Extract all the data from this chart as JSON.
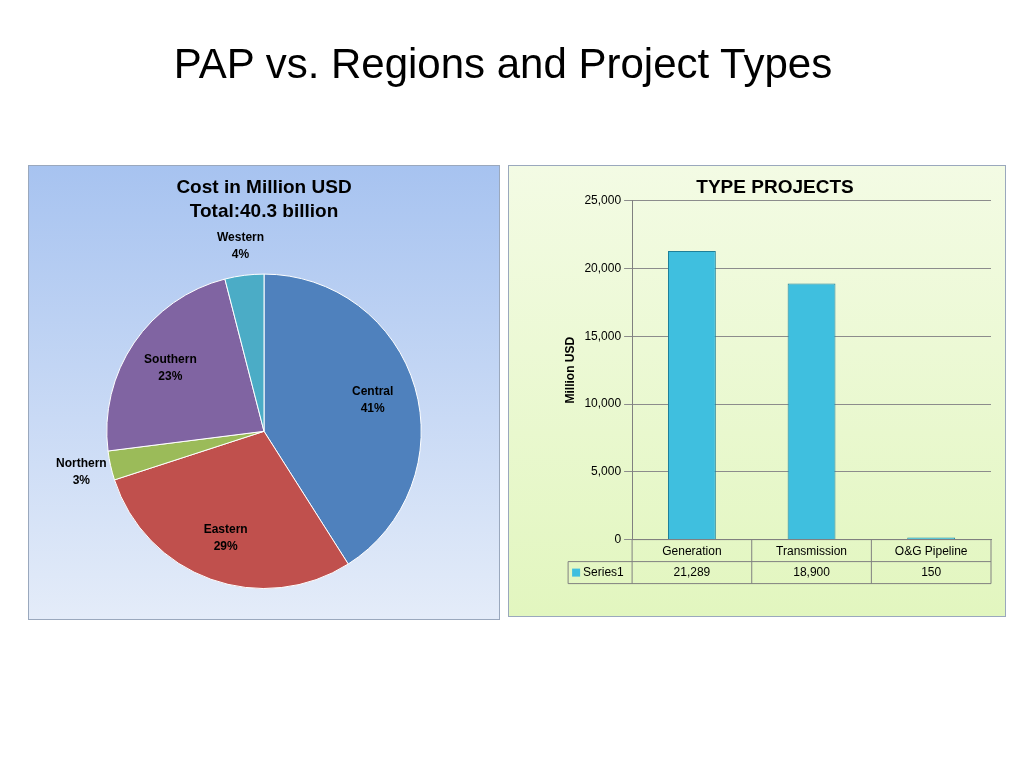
{
  "chart_data": [
    {
      "type": "pie",
      "title": "Cost in Million USD",
      "subtitle": "Total:40.3 billion",
      "annotations": [
        "PAP vs. Regions and Project Types"
      ],
      "categories": [
        "Central",
        "Eastern",
        "Northern",
        "Southern",
        "Western"
      ],
      "values": [
        41,
        29,
        3,
        23,
        4
      ],
      "colors": [
        "#4f81bd",
        "#c0504d",
        "#9bbb59",
        "#8064a2",
        "#4bacc6"
      ],
      "value_labels": [
        "41%",
        "29%",
        "3%",
        "23%",
        "4%"
      ]
    },
    {
      "type": "bar",
      "title": "TYPE PROJECTS",
      "ylabel": "Million USD",
      "categories": [
        "Generation",
        "Transmission",
        "O&G Pipeline"
      ],
      "series": [
        {
          "name": "Series1",
          "color": "#3fbfdf",
          "values": [
            21289,
            18900,
            150
          ],
          "value_labels": [
            "21,289",
            "18,900",
            "150"
          ]
        }
      ],
      "ylim": [
        0,
        25000
      ],
      "yticks": [
        {
          "value": 0,
          "label": "0"
        },
        {
          "value": 5000,
          "label": "5,000"
        },
        {
          "value": 10000,
          "label": "10,000"
        },
        {
          "value": 15000,
          "label": "15,000"
        },
        {
          "value": 20000,
          "label": "20,000"
        },
        {
          "value": 25000,
          "label": "25,000"
        }
      ],
      "grid": "y",
      "legend": "bottom"
    }
  ]
}
